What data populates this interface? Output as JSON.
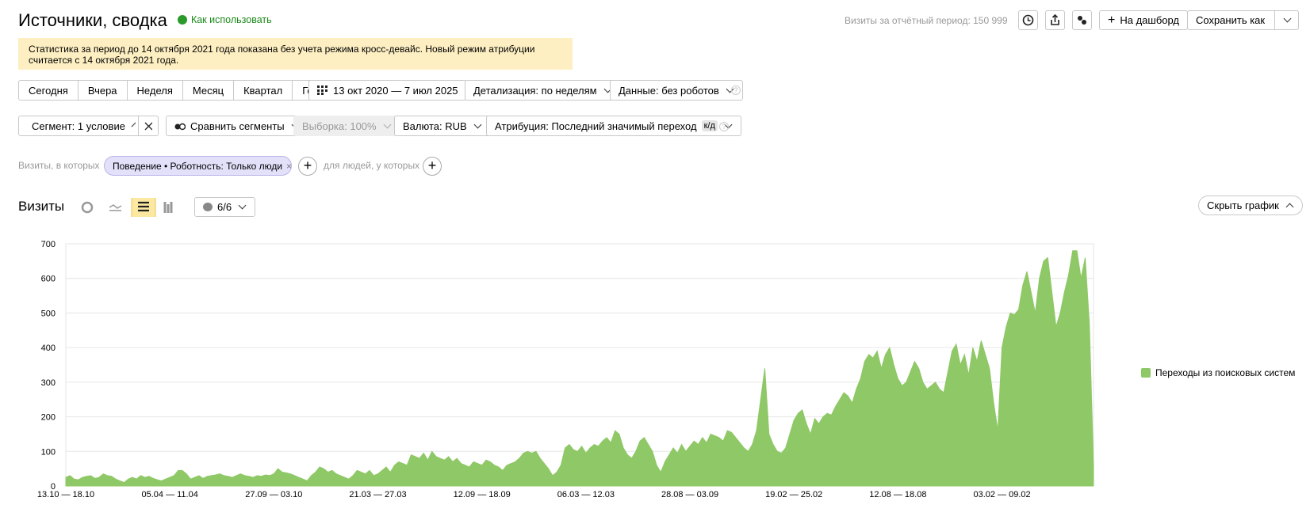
{
  "header": {
    "title": "Источники, сводка",
    "help_link": "Как использовать",
    "visits_total": "Визиты за отчётный период: 150 999",
    "dashboard_button": "На дашборд",
    "save_button": "Сохранить как"
  },
  "notice": [
    "Статистика за период до 14 октября 2021 года показана без учета режима кросс-девайс. Новый режим атрибуции",
    "считается с 14 октября 2021 года."
  ],
  "period_buttons": [
    "Сегодня",
    "Вчера",
    "Неделя",
    "Месяц",
    "Квартал",
    "Год"
  ],
  "date_range": "13 окт 2020 — 7 июл 2025",
  "detail": "Детализация: по неделям",
  "data_filter": "Данные: без роботов",
  "segment": "Сегмент: 1 условие",
  "compare": "Сравнить сегменты",
  "sample": "Выборка: 100%",
  "currency": "Валюта: RUB",
  "attribution": "Атрибуция: Последний значимый переход",
  "attribution_badge": "к/д",
  "filters": {
    "visits_prefix": "Визиты, в которых",
    "condition": "Поведение • Роботность: Только люди",
    "people_prefix": "для людей, у которых"
  },
  "chart_header": {
    "title": "Визиты",
    "annotations_count": "6/6",
    "hide_button": "Скрыть график"
  },
  "chart_data": {
    "type": "area",
    "categories": [
      "13.10 — 18.10",
      null,
      null,
      null,
      null,
      null,
      null,
      null,
      null,
      null,
      null,
      null,
      null,
      null,
      null,
      null,
      null,
      null,
      null,
      null,
      null,
      null,
      null,
      null,
      null,
      "05.04 — 11.04",
      null,
      null,
      null,
      null,
      null,
      null,
      null,
      null,
      null,
      null,
      null,
      null,
      null,
      null,
      null,
      null,
      null,
      null,
      null,
      null,
      null,
      null,
      null,
      null,
      "27.09 — 03.10",
      null,
      null,
      null,
      null,
      null,
      null,
      null,
      null,
      null,
      null,
      null,
      null,
      null,
      null,
      null,
      null,
      null,
      null,
      null,
      null,
      null,
      null,
      null,
      null,
      "21.03 — 27.03",
      null,
      null,
      null,
      null,
      null,
      null,
      null,
      null,
      null,
      null,
      null,
      null,
      null,
      null,
      null,
      null,
      null,
      null,
      null,
      null,
      null,
      null,
      null,
      null,
      "12.09 — 18.09",
      null,
      null,
      null,
      null,
      null,
      null,
      null,
      null,
      null,
      null,
      null,
      null,
      null,
      null,
      null,
      null,
      null,
      null,
      null,
      null,
      null,
      null,
      null,
      null,
      "06.03 — 12.03",
      null,
      null,
      null,
      null,
      null,
      null,
      null,
      null,
      null,
      null,
      null,
      null,
      null,
      null,
      null,
      null,
      null,
      null,
      null,
      null,
      null,
      null,
      null,
      null,
      "28.08 — 03.09",
      null,
      null,
      null,
      null,
      null,
      null,
      null,
      null,
      null,
      null,
      null,
      null,
      null,
      null,
      null,
      null,
      null,
      null,
      null,
      null,
      null,
      null,
      null,
      null,
      "19.02 — 25.02",
      null,
      null,
      null,
      null,
      null,
      null,
      null,
      null,
      null,
      null,
      null,
      null,
      null,
      null,
      null,
      null,
      null,
      null,
      null,
      null,
      null,
      null,
      null,
      null,
      "12.08 — 18.08",
      null,
      null,
      null,
      null,
      null,
      null,
      null,
      null,
      null,
      null,
      null,
      null,
      null,
      null,
      null,
      null,
      null,
      null,
      null,
      null,
      null,
      null,
      null,
      null,
      "03.02 — 09.02",
      null,
      null,
      null,
      null,
      null,
      null,
      null,
      null,
      null,
      null,
      null,
      null,
      null,
      null,
      null,
      null,
      null,
      null,
      null,
      null,
      null,
      null
    ],
    "series": [
      {
        "name": "Переходы из поисковых систем",
        "color": "#8fc866",
        "values": [
          25,
          30,
          20,
          18,
          25,
          28,
          30,
          22,
          25,
          35,
          30,
          28,
          20,
          15,
          10,
          20,
          25,
          20,
          30,
          25,
          28,
          22,
          18,
          15,
          20,
          25,
          30,
          45,
          45,
          35,
          20,
          25,
          30,
          22,
          28,
          30,
          32,
          35,
          30,
          28,
          25,
          30,
          35,
          30,
          28,
          25,
          30,
          28,
          32,
          30,
          35,
          50,
          40,
          38,
          35,
          30,
          25,
          20,
          15,
          30,
          40,
          55,
          50,
          40,
          45,
          35,
          30,
          25,
          20,
          30,
          45,
          40,
          35,
          45,
          30,
          35,
          45,
          55,
          40,
          60,
          70,
          65,
          60,
          90,
          85,
          80,
          95,
          75,
          100,
          85,
          80,
          75,
          85,
          70,
          80,
          65,
          60,
          55,
          70,
          65,
          60,
          75,
          70,
          60,
          55,
          45,
          60,
          65,
          70,
          80,
          95,
          100,
          95,
          100,
          80,
          65,
          50,
          30,
          40,
          60,
          110,
          120,
          105,
          100,
          115,
          95,
          110,
          120,
          115,
          130,
          140,
          125,
          160,
          150,
          110,
          90,
          80,
          100,
          130,
          140,
          120,
          100,
          60,
          40,
          70,
          90,
          110,
          95,
          120,
          100,
          115,
          130,
          120,
          140,
          125,
          150,
          145,
          140,
          130,
          160,
          155,
          140,
          125,
          110,
          100,
          120,
          160,
          250,
          340,
          150,
          120,
          100,
          95,
          110,
          150,
          190,
          210,
          220,
          180,
          150,
          195,
          180,
          200,
          210,
          205,
          230,
          250,
          270,
          260,
          240,
          280,
          310,
          360,
          380,
          370,
          390,
          340,
          380,
          400,
          350,
          310,
          290,
          300,
          330,
          360,
          340,
          300,
          280,
          290,
          300,
          280,
          270,
          330,
          390,
          410,
          350,
          380,
          320,
          400,
          360,
          420,
          380,
          340,
          240,
          160,
          400,
          460,
          500,
          495,
          510,
          580,
          620,
          560,
          500,
          600,
          650,
          660,
          560,
          460,
          500,
          560,
          610,
          680,
          680,
          600,
          660,
          470,
          60
        ]
      }
    ],
    "ylim": [
      0,
      700
    ],
    "yticks": [
      0,
      100,
      200,
      300,
      400,
      500,
      600,
      700
    ],
    "grid": true,
    "legend": "right"
  }
}
